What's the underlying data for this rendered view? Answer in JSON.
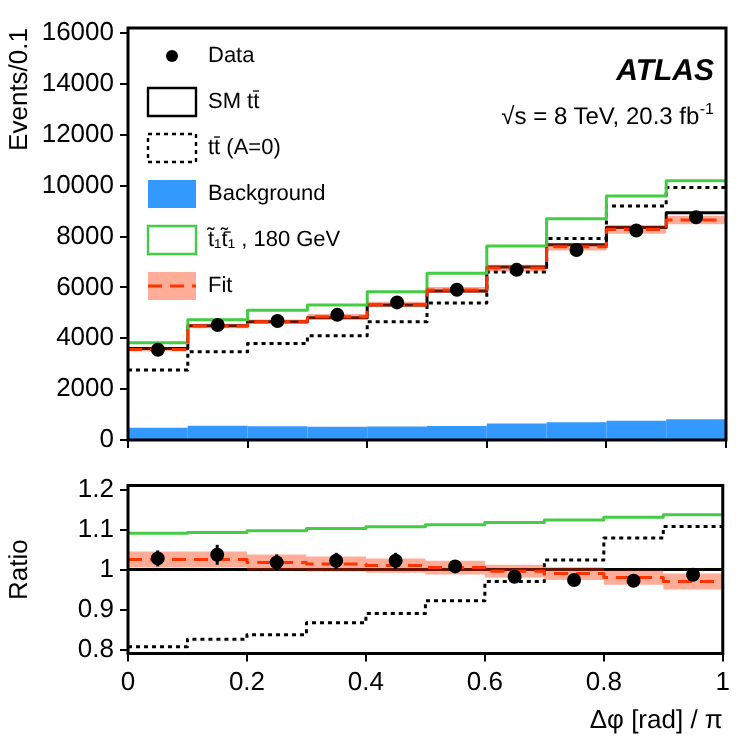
{
  "chart_data": [
    {
      "type": "step",
      "ylabel": "Events/0.1",
      "xlim": [
        0,
        1
      ],
      "xticks": [
        0,
        0.2,
        0.4,
        0.6,
        0.8,
        1
      ],
      "ylim": [
        0,
        16200
      ],
      "yticks": [
        0,
        2000,
        4000,
        6000,
        8000,
        10000,
        12000,
        14000,
        16000
      ],
      "tick_labels": "y",
      "grid": false,
      "legend": "top left",
      "annotations": [
        "ATLAS",
        "√s = 8 TeV, 20.3 fb$^{-1}$"
      ],
      "series": [
        {
          "name": "Data",
          "type": "scatter",
          "marker": "circle",
          "color": "#000000",
          "x": [
            0.05,
            0.15,
            0.25,
            0.35,
            0.45,
            0.55,
            0.65,
            0.75,
            0.85,
            0.95
          ],
          "values": [
            3550,
            4520,
            4680,
            4920,
            5410,
            5910,
            6690,
            7470,
            8240,
            8760
          ]
        },
        {
          "name": "SM tt̄",
          "color": "#000000",
          "line_style": "solid",
          "x": [
            0,
            0.1,
            0.2,
            0.3,
            0.4,
            0.5,
            0.6,
            0.7,
            0.8,
            0.9,
            1
          ],
          "values": [
            3600,
            4490,
            4650,
            4810,
            5310,
            5860,
            6800,
            7680,
            8360,
            8940,
            8940
          ]
        },
        {
          "name": "tt̄ (A=0)",
          "color": "#000000",
          "line_style": "dotted",
          "x": [
            0,
            0.1,
            0.2,
            0.3,
            0.4,
            0.5,
            0.6,
            0.7,
            0.8,
            0.9,
            1
          ],
          "values": [
            2750,
            3470,
            3790,
            4100,
            4650,
            5390,
            6610,
            7920,
            9200,
            9930,
            9930
          ]
        },
        {
          "name": "Background",
          "type": "histogram",
          "color": "#3399ff",
          "bins": [
            0,
            0.1,
            0.2,
            0.3,
            0.4,
            0.5,
            0.6,
            0.7,
            0.8,
            0.9,
            1
          ],
          "values": [
            480,
            560,
            540,
            520,
            530,
            550,
            650,
            700,
            760,
            820
          ]
        },
        {
          "name": "t̃₁t̃̄₁ , 180 GeV",
          "color": "#44cc44",
          "line_style": "solid",
          "x": [
            0,
            0.1,
            0.2,
            0.3,
            0.4,
            0.5,
            0.6,
            0.7,
            0.8,
            0.9,
            1
          ],
          "values": [
            3820,
            4730,
            5100,
            5310,
            5830,
            6560,
            7630,
            8700,
            9590,
            10190,
            10190
          ]
        },
        {
          "name": "Fit",
          "color": "#ff3300",
          "line_style": "dashed",
          "x": [
            0,
            0.1,
            0.2,
            0.3,
            0.4,
            0.5,
            0.6,
            0.7,
            0.8,
            0.9,
            1
          ],
          "values": [
            3560,
            4480,
            4650,
            4850,
            5330,
            5900,
            6760,
            7600,
            8280,
            8650,
            8650
          ],
          "lower": [
            3490,
            4390,
            4560,
            4750,
            5220,
            5780,
            6630,
            7450,
            8110,
            8480,
            8480
          ],
          "upper": [
            3630,
            4570,
            4740,
            4950,
            5440,
            6020,
            6890,
            7750,
            8450,
            8820,
            8820
          ]
        }
      ]
    },
    {
      "type": "step",
      "ylabel": "Ratio",
      "xlabel": "Δφ [rad] / π",
      "xlim": [
        0,
        1
      ],
      "xticks": [
        0,
        0.2,
        0.4,
        0.6,
        0.8,
        1
      ],
      "ylim": [
        0.79,
        1.21
      ],
      "yticks": [
        0.8,
        0.9,
        1,
        1.1,
        1.2
      ],
      "grid": false,
      "ref_lines": [
        {
          "axis": "y",
          "value": 1,
          "color": "#000000"
        }
      ],
      "series": [
        {
          "type": "scatter",
          "marker": "circle",
          "color": "#000000",
          "x": [
            0.05,
            0.15,
            0.25,
            0.35,
            0.45,
            0.55,
            0.65,
            0.75,
            0.85,
            0.95
          ],
          "values": [
            1.028,
            1.037,
            1.018,
            1.022,
            1.022,
            1.008,
            0.982,
            0.974,
            0.972,
            0.987
          ],
          "errors": [
            0.02,
            0.025,
            0.02,
            0.02,
            0.02,
            0.015,
            0.01,
            0.01,
            0.01,
            0.015
          ]
        },
        {
          "color": "#000000",
          "line_style": "dotted",
          "x": [
            0,
            0.1,
            0.2,
            0.3,
            0.4,
            0.5,
            0.6,
            0.7,
            0.8,
            0.9,
            1
          ],
          "values": [
            0.807,
            0.826,
            0.837,
            0.867,
            0.89,
            0.922,
            0.97,
            1.024,
            1.079,
            1.108,
            1.108
          ]
        },
        {
          "color": "#44cc44",
          "line_style": "solid",
          "x": [
            0,
            0.1,
            0.2,
            0.3,
            0.4,
            0.5,
            0.6,
            0.7,
            0.8,
            0.9,
            1
          ],
          "values": [
            1.091,
            1.093,
            1.097,
            1.103,
            1.107,
            1.112,
            1.118,
            1.124,
            1.131,
            1.137,
            1.137
          ]
        },
        {
          "color": "#ff3300",
          "line_style": "dashed",
          "x": [
            0,
            0.1,
            0.2,
            0.3,
            0.4,
            0.5,
            0.6,
            0.7,
            0.8,
            0.9,
            1
          ],
          "values": [
            1.025,
            1.025,
            1.018,
            1.014,
            1.01,
            1.005,
            0.996,
            0.99,
            0.98,
            0.97,
            0.97
          ],
          "lower": [
            1.005,
            1.005,
            0.998,
            0.995,
            0.992,
            0.988,
            0.98,
            0.974,
            0.962,
            0.95,
            0.95
          ],
          "upper": [
            1.045,
            1.045,
            1.038,
            1.033,
            1.028,
            1.022,
            1.012,
            1.006,
            0.998,
            0.99,
            0.99
          ]
        }
      ]
    }
  ]
}
